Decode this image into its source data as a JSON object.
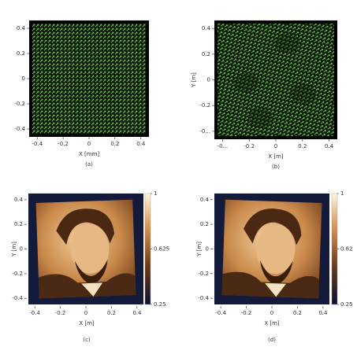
{
  "panels": [
    {
      "caption": "(a)",
      "xlabel": "X [mm]",
      "xlim": [
        -0.45,
        0.45
      ],
      "ylim": [
        -0.45,
        0.45
      ],
      "xticks": [
        -0.4,
        -0.2,
        0,
        0.2,
        0.4
      ],
      "yticks": [
        -0.4,
        -0.2,
        0,
        0.2,
        0.4
      ]
    },
    {
      "caption": "(b)",
      "xlabel": "X [m]",
      "ylabel": "Y [m]",
      "xlim": [
        -0.45,
        0.45
      ],
      "ylim": [
        -0.45,
        0.45
      ],
      "xticks": [
        {
          "value": -0.4,
          "label": "-0..."
        },
        -0.2,
        0,
        0.2,
        0.4
      ],
      "yticks": [
        {
          "value": -0.4,
          "label": "-0..."
        },
        -0.2,
        0,
        0.2,
        0.4
      ]
    },
    {
      "caption": "(c)",
      "xlabel": "X [m]",
      "ylabel": "Y [m]",
      "xlim": [
        -0.45,
        0.45
      ],
      "ylim": [
        -0.45,
        0.45
      ],
      "xticks": [
        -0.4,
        -0.2,
        0,
        0.2,
        0.4
      ],
      "yticks": [
        -0.4,
        -0.2,
        0,
        0.2,
        0.4
      ],
      "colorbar": {
        "lim": [
          0.25,
          1
        ],
        "ticks": [
          0.25,
          0.625,
          1
        ]
      }
    },
    {
      "caption": "(d)",
      "xlabel": "X [m]",
      "ylabel": "Y [m]",
      "xlim": [
        -0.45,
        0.45
      ],
      "ylim": [
        -0.45,
        0.45
      ],
      "xticks": [
        -0.4,
        -0.2,
        0,
        0.2,
        0.4
      ],
      "yticks": [
        -0.4,
        -0.2,
        0,
        0.2,
        0.4
      ],
      "colorbar": {
        "lim": [
          0.25,
          1
        ],
        "ticks": [
          {
            "value": 0.25,
            "label": "0.25"
          },
          {
            "value": 0.625,
            "label": "0.62"
          },
          1
        ]
      }
    }
  ]
}
